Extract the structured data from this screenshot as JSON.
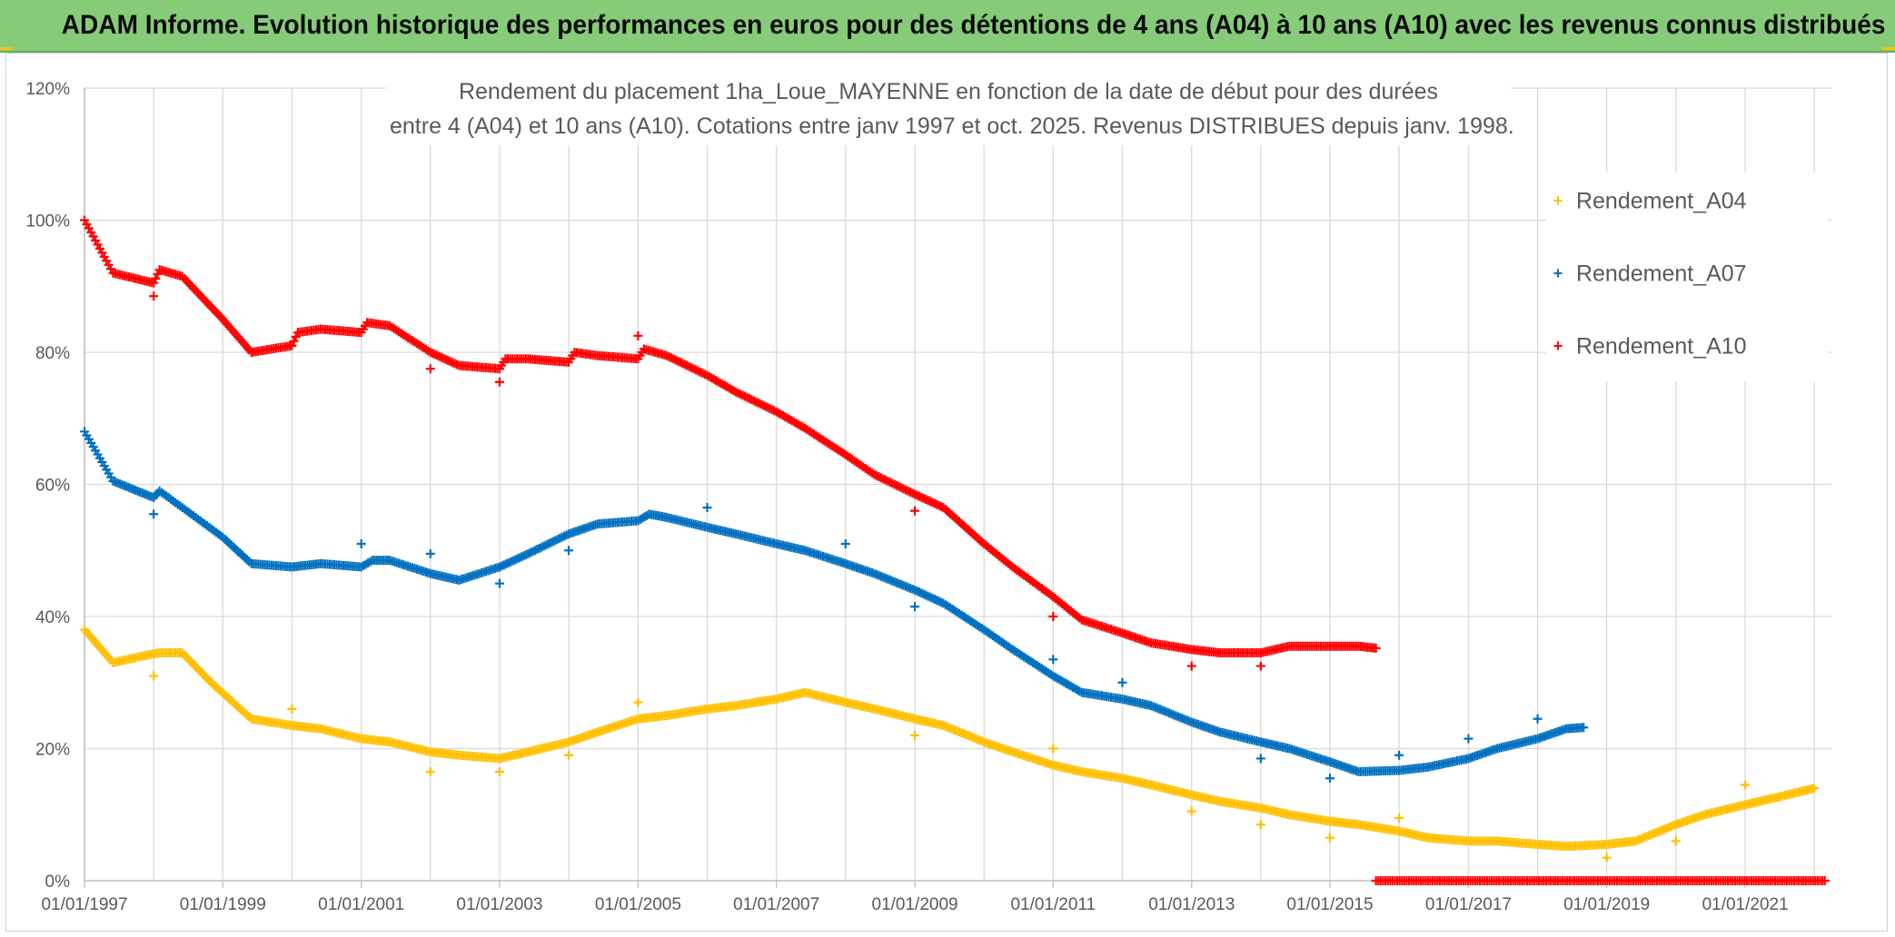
{
  "banner": {
    "title": "ADAM Informe. Evolution historique des performances en euros pour des détentions de 4 ans (A04) à 10 ans (A10) avec les revenus connus distribués"
  },
  "colors": {
    "banner_bg": "#86cc78",
    "A04": "#ffc000",
    "A07": "#0070c0",
    "A10": "#ff0000",
    "grid": "#d9d9d9",
    "axis_text": "#595959"
  },
  "chart_data": {
    "type": "scatter",
    "marker": "+",
    "title_lines": [
      "Rendement du placement 1ha_Loue_MAYENNE en fonction de la date de début pour des durées",
      "entre 4 (A04) et 10 ans (A10). Cotations entre janv 1997 et oct. 2025. Revenus DISTRIBUES depuis janv. 1998."
    ],
    "xlabel": "",
    "ylabel": "",
    "x_ticks": [
      "01/01/1997",
      "01/01/1999",
      "01/01/2001",
      "01/01/2003",
      "01/01/2005",
      "01/01/2007",
      "01/01/2009",
      "01/01/2011",
      "01/01/2013",
      "01/01/2015",
      "01/01/2017",
      "01/01/2019",
      "01/01/2021"
    ],
    "xlim": [
      "1997-01-01",
      "2022-04-01"
    ],
    "y_ticks": [
      "0%",
      "20%",
      "40%",
      "60%",
      "80%",
      "100%",
      "120%"
    ],
    "ylim": [
      0,
      1.2
    ],
    "grid": true,
    "legend_position": "right",
    "series": [
      {
        "name": "Rendement_A04",
        "color_key": "A04",
        "points": [
          [
            "1997-01-01",
            0.38
          ],
          [
            "1997-06-01",
            0.33
          ],
          [
            "1997-11-01",
            0.34
          ],
          [
            "1998-02-01",
            0.345
          ],
          [
            "1998-06-01",
            0.345
          ],
          [
            "1998-11-01",
            0.3
          ],
          [
            "1999-06-01",
            0.245
          ],
          [
            "2000-01-01",
            0.235
          ],
          [
            "2000-06-01",
            0.23
          ],
          [
            "2001-01-01",
            0.215
          ],
          [
            "2001-06-01",
            0.21
          ],
          [
            "2002-01-01",
            0.195
          ],
          [
            "2002-06-01",
            0.19
          ],
          [
            "2003-01-01",
            0.185
          ],
          [
            "2003-06-01",
            0.195
          ],
          [
            "2004-01-01",
            0.21
          ],
          [
            "2004-06-01",
            0.225
          ],
          [
            "2005-01-01",
            0.245
          ],
          [
            "2005-06-01",
            0.25
          ],
          [
            "2006-01-01",
            0.26
          ],
          [
            "2006-06-01",
            0.265
          ],
          [
            "2007-01-01",
            0.275
          ],
          [
            "2007-06-01",
            0.285
          ],
          [
            "2008-01-01",
            0.27
          ],
          [
            "2008-06-01",
            0.26
          ],
          [
            "2009-01-01",
            0.245
          ],
          [
            "2009-06-01",
            0.235
          ],
          [
            "2010-01-01",
            0.21
          ],
          [
            "2010-06-01",
            0.195
          ],
          [
            "2011-01-01",
            0.175
          ],
          [
            "2011-06-01",
            0.165
          ],
          [
            "2012-01-01",
            0.155
          ],
          [
            "2012-06-01",
            0.145
          ],
          [
            "2013-01-01",
            0.13
          ],
          [
            "2013-06-01",
            0.12
          ],
          [
            "2014-01-01",
            0.11
          ],
          [
            "2014-06-01",
            0.1
          ],
          [
            "2015-01-01",
            0.09
          ],
          [
            "2015-06-01",
            0.085
          ],
          [
            "2016-01-01",
            0.075
          ],
          [
            "2016-06-01",
            0.065
          ],
          [
            "2017-01-01",
            0.06
          ],
          [
            "2017-06-01",
            0.06
          ],
          [
            "2018-01-01",
            0.055
          ],
          [
            "2018-06-01",
            0.052
          ],
          [
            "2019-01-01",
            0.055
          ],
          [
            "2019-06-01",
            0.06
          ],
          [
            "2020-01-01",
            0.085
          ],
          [
            "2020-06-01",
            0.1
          ],
          [
            "2021-01-01",
            0.115
          ],
          [
            "2021-06-01",
            0.125
          ],
          [
            "2022-01-01",
            0.14
          ]
        ],
        "outliers": [
          [
            "1998-01-01",
            0.31
          ],
          [
            "2000-01-01",
            0.26
          ],
          [
            "2002-01-01",
            0.165
          ],
          [
            "2003-01-01",
            0.165
          ],
          [
            "2004-01-01",
            0.19
          ],
          [
            "2005-01-01",
            0.27
          ],
          [
            "2009-01-01",
            0.22
          ],
          [
            "2011-01-01",
            0.2
          ],
          [
            "2013-01-01",
            0.105
          ],
          [
            "2014-01-01",
            0.085
          ],
          [
            "2015-01-01",
            0.065
          ],
          [
            "2016-01-01",
            0.095
          ],
          [
            "2019-01-01",
            0.035
          ],
          [
            "2020-01-01",
            0.06
          ],
          [
            "2021-01-01",
            0.145
          ]
        ]
      },
      {
        "name": "Rendement_A07",
        "color_key": "A07",
        "points": [
          [
            "1997-01-01",
            0.68
          ],
          [
            "1997-06-01",
            0.605
          ],
          [
            "1998-01-01",
            0.58
          ],
          [
            "1998-02-01",
            0.59
          ],
          [
            "1998-06-01",
            0.565
          ],
          [
            "1999-01-01",
            0.52
          ],
          [
            "1999-06-01",
            0.48
          ],
          [
            "2000-01-01",
            0.475
          ],
          [
            "2000-06-01",
            0.48
          ],
          [
            "2001-01-01",
            0.475
          ],
          [
            "2001-03-01",
            0.485
          ],
          [
            "2001-06-01",
            0.485
          ],
          [
            "2002-01-01",
            0.465
          ],
          [
            "2002-06-01",
            0.455
          ],
          [
            "2003-01-01",
            0.475
          ],
          [
            "2003-06-01",
            0.495
          ],
          [
            "2004-01-01",
            0.525
          ],
          [
            "2004-06-01",
            0.54
          ],
          [
            "2005-01-01",
            0.545
          ],
          [
            "2005-03-01",
            0.555
          ],
          [
            "2005-06-01",
            0.55
          ],
          [
            "2006-01-01",
            0.535
          ],
          [
            "2006-06-01",
            0.525
          ],
          [
            "2007-01-01",
            0.51
          ],
          [
            "2007-06-01",
            0.5
          ],
          [
            "2008-01-01",
            0.48
          ],
          [
            "2008-06-01",
            0.465
          ],
          [
            "2009-01-01",
            0.44
          ],
          [
            "2009-06-01",
            0.42
          ],
          [
            "2010-01-01",
            0.38
          ],
          [
            "2010-06-01",
            0.35
          ],
          [
            "2011-01-01",
            0.31
          ],
          [
            "2011-06-01",
            0.285
          ],
          [
            "2012-01-01",
            0.275
          ],
          [
            "2012-06-01",
            0.265
          ],
          [
            "2013-01-01",
            0.24
          ],
          [
            "2013-06-01",
            0.225
          ],
          [
            "2014-01-01",
            0.21
          ],
          [
            "2014-06-01",
            0.2
          ],
          [
            "2015-01-01",
            0.18
          ],
          [
            "2015-06-01",
            0.165
          ],
          [
            "2016-01-01",
            0.167
          ],
          [
            "2016-06-01",
            0.172
          ],
          [
            "2017-01-01",
            0.185
          ],
          [
            "2017-06-01",
            0.2
          ],
          [
            "2018-01-01",
            0.215
          ],
          [
            "2018-06-01",
            0.23
          ],
          [
            "2018-09-01",
            0.232
          ]
        ],
        "outliers": [
          [
            "1998-01-01",
            0.555
          ],
          [
            "2001-01-01",
            0.51
          ],
          [
            "2002-01-01",
            0.495
          ],
          [
            "2003-01-01",
            0.45
          ],
          [
            "2004-01-01",
            0.5
          ],
          [
            "2006-01-01",
            0.565
          ],
          [
            "2008-01-01",
            0.51
          ],
          [
            "2009-01-01",
            0.415
          ],
          [
            "2011-01-01",
            0.335
          ],
          [
            "2012-01-01",
            0.3
          ],
          [
            "2014-01-01",
            0.185
          ],
          [
            "2015-01-01",
            0.155
          ],
          [
            "2016-01-01",
            0.19
          ],
          [
            "2017-01-01",
            0.215
          ],
          [
            "2018-01-01",
            0.245
          ]
        ]
      },
      {
        "name": "Rendement_A10",
        "color_key": "A10",
        "points": [
          [
            "1997-01-01",
            1.0
          ],
          [
            "1997-06-01",
            0.92
          ],
          [
            "1998-01-01",
            0.905
          ],
          [
            "1998-02-01",
            0.925
          ],
          [
            "1998-06-01",
            0.915
          ],
          [
            "1999-01-01",
            0.85
          ],
          [
            "1999-06-01",
            0.8
          ],
          [
            "2000-01-01",
            0.81
          ],
          [
            "2000-02-01",
            0.83
          ],
          [
            "2000-06-01",
            0.835
          ],
          [
            "2001-01-01",
            0.83
          ],
          [
            "2001-02-01",
            0.845
          ],
          [
            "2001-06-01",
            0.84
          ],
          [
            "2002-01-01",
            0.8
          ],
          [
            "2002-06-01",
            0.78
          ],
          [
            "2003-01-01",
            0.775
          ],
          [
            "2003-02-01",
            0.79
          ],
          [
            "2003-06-01",
            0.79
          ],
          [
            "2004-01-01",
            0.785
          ],
          [
            "2004-02-01",
            0.8
          ],
          [
            "2004-06-01",
            0.795
          ],
          [
            "2005-01-01",
            0.79
          ],
          [
            "2005-02-01",
            0.805
          ],
          [
            "2005-06-01",
            0.795
          ],
          [
            "2006-01-01",
            0.765
          ],
          [
            "2006-06-01",
            0.74
          ],
          [
            "2007-01-01",
            0.71
          ],
          [
            "2007-06-01",
            0.685
          ],
          [
            "2008-01-01",
            0.645
          ],
          [
            "2008-06-01",
            0.615
          ],
          [
            "2009-01-01",
            0.585
          ],
          [
            "2009-06-01",
            0.565
          ],
          [
            "2010-01-01",
            0.51
          ],
          [
            "2010-06-01",
            0.475
          ],
          [
            "2011-01-01",
            0.43
          ],
          [
            "2011-06-01",
            0.395
          ],
          [
            "2012-01-01",
            0.375
          ],
          [
            "2012-06-01",
            0.36
          ],
          [
            "2013-01-01",
            0.35
          ],
          [
            "2013-06-01",
            0.345
          ],
          [
            "2014-01-01",
            0.345
          ],
          [
            "2014-06-01",
            0.355
          ],
          [
            "2015-01-01",
            0.355
          ],
          [
            "2015-06-01",
            0.355
          ],
          [
            "2015-09-01",
            0.352
          ]
        ],
        "zero_range": [
          "2015-09-01",
          "2022-03-01"
        ],
        "outliers": [
          [
            "1998-01-01",
            0.885
          ],
          [
            "2002-01-01",
            0.775
          ],
          [
            "2003-01-01",
            0.755
          ],
          [
            "2005-01-01",
            0.825
          ],
          [
            "2009-01-01",
            0.56
          ],
          [
            "2011-01-01",
            0.4
          ],
          [
            "2013-01-01",
            0.325
          ],
          [
            "2014-01-01",
            0.325
          ]
        ]
      }
    ]
  }
}
